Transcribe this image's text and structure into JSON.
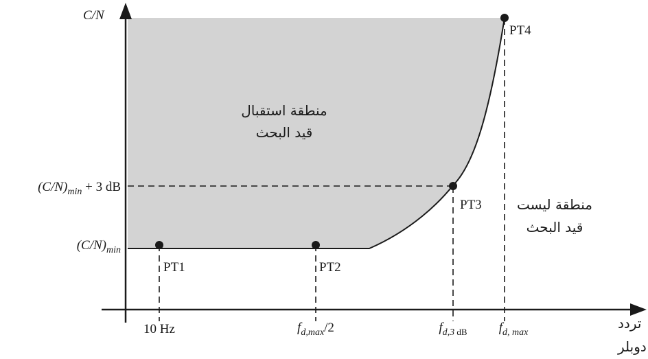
{
  "y_axis": {
    "label": "C/N",
    "levels": {
      "cn_min": {
        "base": "(C/N)",
        "sub": "min"
      },
      "cn_min_plus3": {
        "base": "(C/N)",
        "sub": "min",
        "suffix": " + 3 dB"
      }
    }
  },
  "x_axis": {
    "label_line1": "تردد",
    "label_line2": "دوبلر",
    "ticks": {
      "t10hz": "10 Hz",
      "half": {
        "base": "f",
        "sub": "d,max",
        "suffix": "/2"
      },
      "f3db": {
        "base": "f",
        "sub": "d,3",
        "sub2": " dB"
      },
      "fmax": {
        "base": "f",
        "sub": "d, max"
      }
    }
  },
  "points": {
    "pt1": "PT1",
    "pt2": "PT2",
    "pt3": "PT3",
    "pt4": "PT4"
  },
  "regions": {
    "acceptance_line1": "منطقة استقبال",
    "acceptance_line2": "قيد البحث",
    "outside_line1": "منطقة ليست",
    "outside_line2": "قيد البحث"
  },
  "colors": {
    "fill": "#d3d3d3",
    "line": "#1a1a1a"
  }
}
